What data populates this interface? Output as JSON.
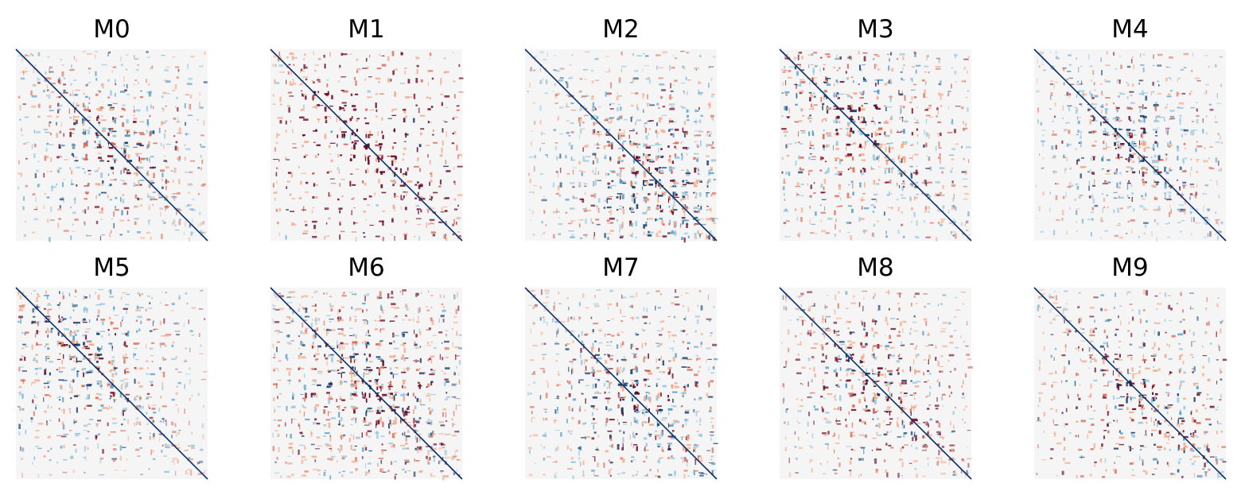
{
  "figure": {
    "layout": "2 rows x 5 columns grid of matrix heatmaps, axes hidden"
  },
  "chart_data": [
    {
      "type": "heatmap",
      "title": "M0",
      "pattern": "diffuse-center"
    },
    {
      "type": "heatmap",
      "title": "M1",
      "pattern": "sparse-dark"
    },
    {
      "type": "heatmap",
      "title": "M2",
      "pattern": "dense-lower-right"
    },
    {
      "type": "heatmap",
      "title": "M3",
      "pattern": "medium"
    },
    {
      "type": "heatmap",
      "title": "M4",
      "pattern": "dense-center"
    },
    {
      "type": "heatmap",
      "title": "M5",
      "pattern": "medium-upper"
    },
    {
      "type": "heatmap",
      "title": "M6",
      "pattern": "dense-dark"
    },
    {
      "type": "heatmap",
      "title": "M7",
      "pattern": "medium-lower"
    },
    {
      "type": "heatmap",
      "title": "M8",
      "pattern": "dark-center"
    },
    {
      "type": "heatmap",
      "title": "M9",
      "pattern": "sparse-corner"
    }
  ],
  "colors": {
    "background": "#f5f5f5",
    "diagonal": "#08306b",
    "positive_dark": "#67001f",
    "positive": "#d6604d",
    "positive_light": "#f4a582",
    "negative_light": "#92c5de",
    "negative": "#4393c3",
    "negative_dark": "#053061",
    "colormap": "RdBu"
  }
}
